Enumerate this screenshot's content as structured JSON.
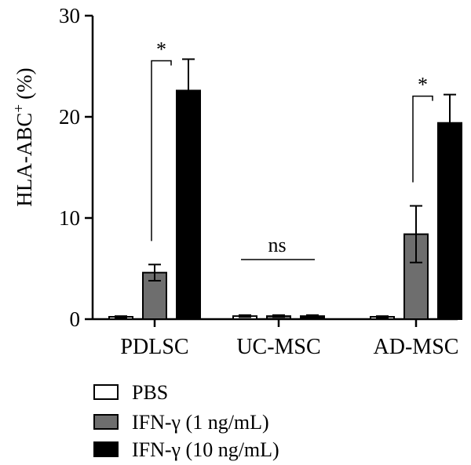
{
  "chart_data": {
    "type": "bar",
    "categories": [
      "PDLSC",
      "UC-MSC",
      "AD-MSC"
    ],
    "series": [
      {
        "name": "PBS",
        "values": [
          0.2,
          0.3,
          0.2
        ],
        "errors": [
          0.1,
          0.1,
          0.1
        ],
        "color": "#ffffff"
      },
      {
        "name": "IFN-γ (1 ng/mL)",
        "values": [
          4.6,
          0.3,
          8.4
        ],
        "errors": [
          0.8,
          0.1,
          2.8
        ],
        "color": "#6e6e6e"
      },
      {
        "name": "IFN-γ (10 ng/mL)",
        "values": [
          22.6,
          0.3,
          19.4
        ],
        "errors": [
          3.1,
          0.1,
          2.8
        ],
        "color": "#000000"
      }
    ],
    "ylabel": "HLA-ABC",
    "ylabel_superscript": "+",
    "ylabel_unit": "(%)",
    "ylim": [
      0,
      30
    ],
    "yticks": [
      "0",
      "10",
      "20",
      "30"
    ],
    "grid": false,
    "legend_position": "bottom-left",
    "annotations": [
      {
        "category": "PDLSC",
        "text": "*",
        "kind": "bracket"
      },
      {
        "category": "UC-MSC",
        "text": "ns",
        "kind": "line"
      },
      {
        "category": "AD-MSC",
        "text": "*",
        "kind": "bracket"
      }
    ]
  }
}
